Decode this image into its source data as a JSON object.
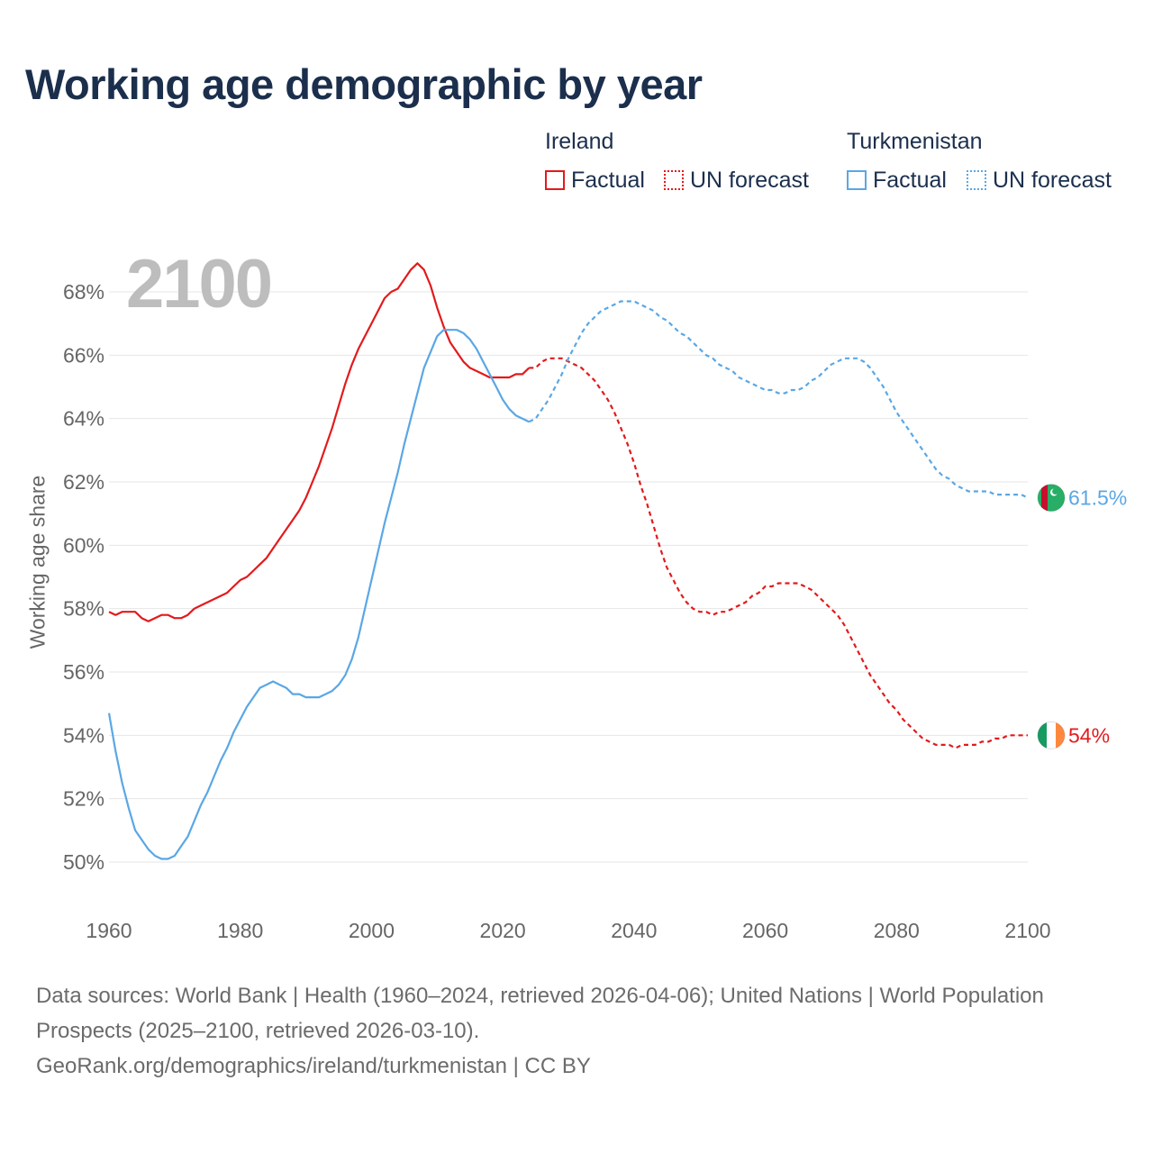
{
  "title": "Working age demographic by year",
  "legend": {
    "groups": [
      {
        "name": "Ireland",
        "factual_label": "Factual",
        "forecast_label": "UN forecast",
        "color": "#e31a1c"
      },
      {
        "name": "Turkmenistan",
        "factual_label": "Factual",
        "forecast_label": "UN forecast",
        "color": "#5aa7e5"
      }
    ]
  },
  "year_display": "2100",
  "chart_data": {
    "type": "line",
    "title": "Working age demographic by year",
    "xlabel": "",
    "ylabel": "Working age share",
    "xlim": [
      1960,
      2100
    ],
    "ylim": [
      49.5,
      69
    ],
    "x_ticks": [
      1960,
      1980,
      2000,
      2020,
      2040,
      2060,
      2080,
      2100
    ],
    "x_tick_labels": [
      "1960",
      "1980",
      "2000",
      "2020",
      "2040",
      "2060",
      "2080",
      "2100"
    ],
    "y_ticks": [
      50,
      52,
      54,
      56,
      58,
      60,
      62,
      64,
      66,
      68
    ],
    "y_tick_labels": [
      "50%",
      "52%",
      "54%",
      "56%",
      "58%",
      "60%",
      "62%",
      "64%",
      "66%",
      "68%"
    ],
    "grid": true,
    "series": [
      {
        "name": "Ireland",
        "color": "#e31a1c",
        "end_label": "54%",
        "factual": {
          "x": [
            1960,
            1961,
            1962,
            1963,
            1964,
            1965,
            1966,
            1967,
            1968,
            1969,
            1970,
            1971,
            1972,
            1973,
            1974,
            1975,
            1976,
            1977,
            1978,
            1979,
            1980,
            1981,
            1982,
            1983,
            1984,
            1985,
            1986,
            1987,
            1988,
            1989,
            1990,
            1991,
            1992,
            1993,
            1994,
            1995,
            1996,
            1997,
            1998,
            1999,
            2000,
            2001,
            2002,
            2003,
            2004,
            2005,
            2006,
            2007,
            2008,
            2009,
            2010,
            2011,
            2012,
            2013,
            2014,
            2015,
            2016,
            2017,
            2018,
            2019,
            2020,
            2021,
            2022,
            2023,
            2024
          ],
          "y": [
            57.9,
            57.8,
            57.9,
            57.9,
            57.9,
            57.7,
            57.6,
            57.7,
            57.8,
            57.8,
            57.7,
            57.7,
            57.8,
            58.0,
            58.1,
            58.2,
            58.3,
            58.4,
            58.5,
            58.7,
            58.9,
            59.0,
            59.2,
            59.4,
            59.6,
            59.9,
            60.2,
            60.5,
            60.8,
            61.1,
            61.5,
            62.0,
            62.5,
            63.1,
            63.7,
            64.4,
            65.1,
            65.7,
            66.2,
            66.6,
            67.0,
            67.4,
            67.8,
            68.0,
            68.1,
            68.4,
            68.7,
            68.9,
            68.7,
            68.2,
            67.5,
            66.9,
            66.4,
            66.1,
            65.8,
            65.6,
            65.5,
            65.4,
            65.3,
            65.3,
            65.3,
            65.3,
            65.4,
            65.4,
            65.6
          ]
        },
        "forecast": {
          "x": [
            2024,
            2025,
            2026,
            2027,
            2028,
            2029,
            2030,
            2031,
            2032,
            2033,
            2034,
            2035,
            2036,
            2037,
            2038,
            2039,
            2040,
            2041,
            2042,
            2043,
            2044,
            2045,
            2046,
            2047,
            2048,
            2049,
            2050,
            2051,
            2052,
            2053,
            2054,
            2055,
            2056,
            2057,
            2058,
            2059,
            2060,
            2061,
            2062,
            2063,
            2064,
            2065,
            2066,
            2067,
            2068,
            2069,
            2070,
            2071,
            2072,
            2073,
            2074,
            2075,
            2076,
            2077,
            2078,
            2079,
            2080,
            2081,
            2082,
            2083,
            2084,
            2085,
            2086,
            2087,
            2088,
            2089,
            2090,
            2091,
            2092,
            2093,
            2094,
            2095,
            2096,
            2097,
            2098,
            2099,
            2100
          ],
          "y": [
            65.6,
            65.6,
            65.8,
            65.9,
            65.9,
            65.9,
            65.8,
            65.7,
            65.6,
            65.4,
            65.2,
            64.9,
            64.6,
            64.2,
            63.7,
            63.2,
            62.6,
            61.9,
            61.3,
            60.6,
            59.9,
            59.3,
            58.9,
            58.5,
            58.2,
            58.0,
            57.9,
            57.9,
            57.8,
            57.9,
            57.9,
            58.0,
            58.1,
            58.2,
            58.4,
            58.5,
            58.7,
            58.7,
            58.8,
            58.8,
            58.8,
            58.8,
            58.7,
            58.6,
            58.4,
            58.2,
            58.0,
            57.8,
            57.5,
            57.1,
            56.7,
            56.3,
            55.9,
            55.6,
            55.3,
            55.0,
            54.8,
            54.5,
            54.3,
            54.1,
            53.9,
            53.8,
            53.7,
            53.7,
            53.7,
            53.6,
            53.7,
            53.7,
            53.7,
            53.8,
            53.8,
            53.9,
            53.9,
            54.0,
            54.0,
            54.0,
            54.0
          ]
        }
      },
      {
        "name": "Turkmenistan",
        "color": "#5aa7e5",
        "end_label": "61.5%",
        "factual": {
          "x": [
            1960,
            1961,
            1962,
            1963,
            1964,
            1965,
            1966,
            1967,
            1968,
            1969,
            1970,
            1971,
            1972,
            1973,
            1974,
            1975,
            1976,
            1977,
            1978,
            1979,
            1980,
            1981,
            1982,
            1983,
            1984,
            1985,
            1986,
            1987,
            1988,
            1989,
            1990,
            1991,
            1992,
            1993,
            1994,
            1995,
            1996,
            1997,
            1998,
            1999,
            2000,
            2001,
            2002,
            2003,
            2004,
            2005,
            2006,
            2007,
            2008,
            2009,
            2010,
            2011,
            2012,
            2013,
            2014,
            2015,
            2016,
            2017,
            2018,
            2019,
            2020,
            2021,
            2022,
            2023,
            2024
          ],
          "y": [
            54.7,
            53.5,
            52.5,
            51.7,
            51.0,
            50.7,
            50.4,
            50.2,
            50.1,
            50.1,
            50.2,
            50.5,
            50.8,
            51.3,
            51.8,
            52.2,
            52.7,
            53.2,
            53.6,
            54.1,
            54.5,
            54.9,
            55.2,
            55.5,
            55.6,
            55.7,
            55.6,
            55.5,
            55.3,
            55.3,
            55.2,
            55.2,
            55.2,
            55.3,
            55.4,
            55.6,
            55.9,
            56.4,
            57.1,
            58.0,
            58.9,
            59.8,
            60.7,
            61.5,
            62.3,
            63.2,
            64.0,
            64.8,
            65.6,
            66.1,
            66.6,
            66.8,
            66.8,
            66.8,
            66.7,
            66.5,
            66.2,
            65.8,
            65.4,
            65.0,
            64.6,
            64.3,
            64.1,
            64.0,
            63.9
          ]
        },
        "forecast": {
          "x": [
            2024,
            2025,
            2026,
            2027,
            2028,
            2029,
            2030,
            2031,
            2032,
            2033,
            2034,
            2035,
            2036,
            2037,
            2038,
            2039,
            2040,
            2041,
            2042,
            2043,
            2044,
            2045,
            2046,
            2047,
            2048,
            2049,
            2050,
            2051,
            2052,
            2053,
            2054,
            2055,
            2056,
            2057,
            2058,
            2059,
            2060,
            2061,
            2062,
            2063,
            2064,
            2065,
            2066,
            2067,
            2068,
            2069,
            2070,
            2071,
            2072,
            2073,
            2074,
            2075,
            2076,
            2077,
            2078,
            2079,
            2080,
            2081,
            2082,
            2083,
            2084,
            2085,
            2086,
            2087,
            2088,
            2089,
            2090,
            2091,
            2092,
            2093,
            2094,
            2095,
            2096,
            2097,
            2098,
            2099,
            2100
          ],
          "y": [
            63.9,
            64.0,
            64.3,
            64.6,
            65.0,
            65.4,
            65.9,
            66.3,
            66.7,
            67.0,
            67.2,
            67.4,
            67.5,
            67.6,
            67.7,
            67.7,
            67.7,
            67.6,
            67.5,
            67.4,
            67.2,
            67.1,
            66.9,
            66.7,
            66.6,
            66.4,
            66.2,
            66.0,
            65.9,
            65.7,
            65.6,
            65.5,
            65.3,
            65.2,
            65.1,
            65.0,
            64.9,
            64.9,
            64.8,
            64.8,
            64.9,
            64.9,
            65.0,
            65.2,
            65.3,
            65.5,
            65.7,
            65.8,
            65.9,
            65.9,
            65.9,
            65.8,
            65.6,
            65.3,
            65.0,
            64.6,
            64.2,
            63.9,
            63.6,
            63.3,
            63.0,
            62.7,
            62.4,
            62.2,
            62.1,
            61.9,
            61.8,
            61.7,
            61.7,
            61.7,
            61.7,
            61.6,
            61.6,
            61.6,
            61.6,
            61.6,
            61.5
          ]
        }
      }
    ]
  },
  "footer": {
    "sources": "Data sources: World Bank | Health (1960–2024, retrieved 2026-04-06); United Nations | World Population Prospects (2025–2100, retrieved 2026-03-10).",
    "attribution": "GeoRank.org/demographics/ireland/turkmenistan | CC BY"
  },
  "colors": {
    "title": "#1b2f4d",
    "grid": "#e6e6e6",
    "axis_text": "#666666"
  }
}
